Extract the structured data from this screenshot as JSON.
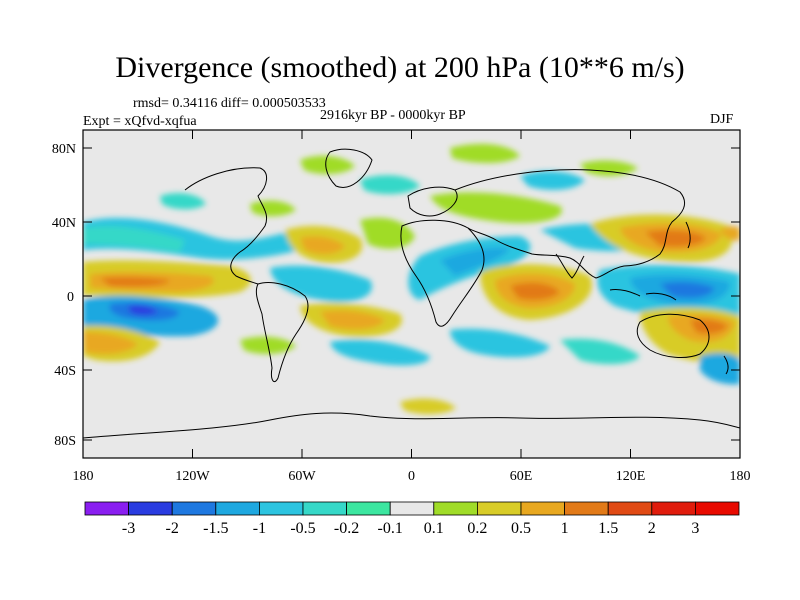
{
  "header": {
    "title": "Divergence (smoothed) at 200 hPa (10**6 m/s)",
    "stats": "rmsd= 0.34116 diff= 0.000503533",
    "period": "2916kyr BP - 0000kyr BP",
    "experiment": "Expt = xQfvd-xqfua",
    "season": "DJF"
  },
  "map": {
    "lat_labels": [
      "80N",
      "40N",
      "0",
      "40S",
      "80S"
    ],
    "lon_labels": [
      "180",
      "120W",
      "60W",
      "0",
      "60E",
      "120E",
      "180"
    ]
  },
  "colorbar": {
    "labels": [
      "-3",
      "-2",
      "-1.5",
      "-1",
      "-0.5",
      "-0.2",
      "-0.1",
      "0.1",
      "0.2",
      "0.5",
      "1",
      "1.5",
      "2",
      "3"
    ],
    "colors": [
      "#8a1ef0",
      "#2a3ce0",
      "#1e78e0",
      "#1ea8e0",
      "#2cc4e0",
      "#36d8c8",
      "#3ce6a0",
      "#e8e8e8",
      "#a0dc28",
      "#d8cc28",
      "#e8a820",
      "#e27a18",
      "#e04a14",
      "#e01c0c",
      "#e80a00"
    ]
  }
}
